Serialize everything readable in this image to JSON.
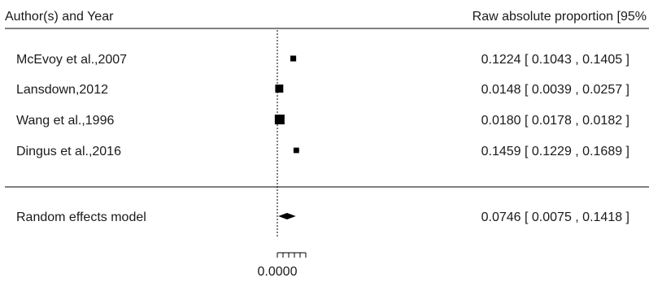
{
  "chart_data": {
    "type": "forest",
    "columns": {
      "study": "Author(s) and Year",
      "estimate": "Raw absolute proportion [95%"
    },
    "studies": [
      {
        "label": "McEvoy et al.,2007",
        "estimate": 0.1224,
        "ci_low": 0.1043,
        "ci_high": 0.1405,
        "ci_text": "0.1224 [ 0.1043 , 0.1405 ]",
        "weight": 0.3
      },
      {
        "label": "Lansdown,2012",
        "estimate": 0.0148,
        "ci_low": 0.0039,
        "ci_high": 0.0257,
        "ci_text": "0.0148 [ 0.0039 , 0.0257 ]",
        "weight": 0.7
      },
      {
        "label": "Wang et al.,1996",
        "estimate": 0.018,
        "ci_low": 0.0178,
        "ci_high": 0.0182,
        "ci_text": "0.0180 [ 0.0178 , 0.0182 ]",
        "weight": 1.0
      },
      {
        "label": "Dingus et al.,2016",
        "estimate": 0.1459,
        "ci_low": 0.1229,
        "ci_high": 0.1689,
        "ci_text": "0.1459 [ 0.1229 , 0.1689 ]",
        "weight": 0.25
      }
    ],
    "summary": {
      "label": "Random effects model",
      "estimate": 0.0746,
      "ci_low": 0.0075,
      "ci_high": 0.1418,
      "ci_text": "0.0746 [ 0.0075 , 0.1418 ]"
    },
    "reference_line": 0.0,
    "xlim": [
      0.0,
      0.25
    ],
    "x_tick_labels": [
      "0.0000"
    ],
    "minor_tick_count": 6
  }
}
